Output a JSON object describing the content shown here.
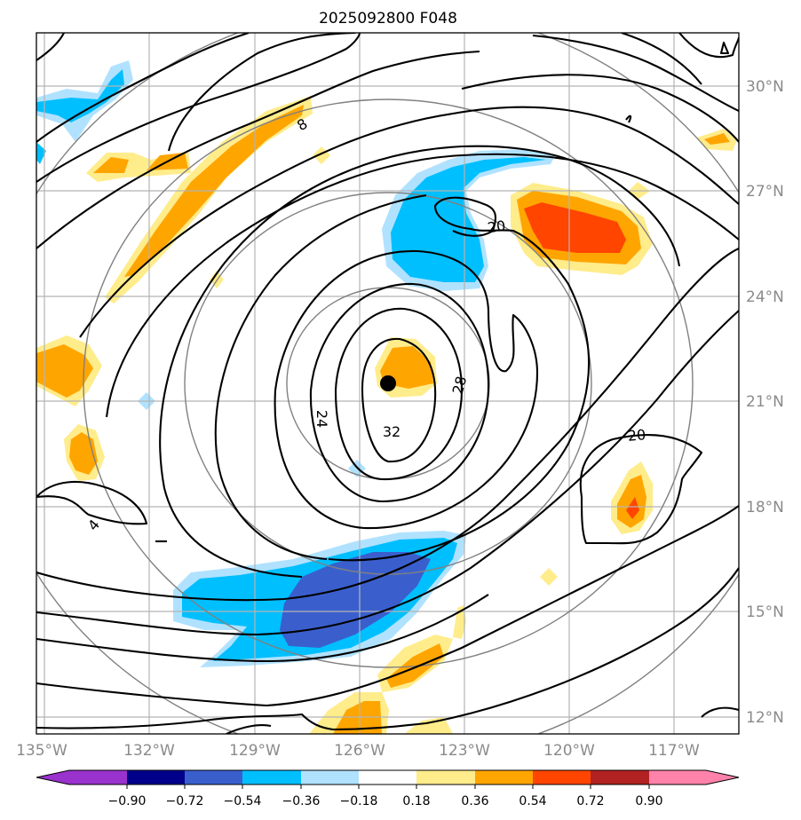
{
  "chart_data": {
    "type": "map",
    "title": "2025092800 F048",
    "lon_ticks": [
      "135°W",
      "132°W",
      "129°W",
      "126°W",
      "123°W",
      "120°W",
      "117°W"
    ],
    "lat_ticks": [
      "30°N",
      "27°N",
      "24°N",
      "21°N",
      "18°N",
      "15°N",
      "12°N"
    ],
    "lon_range": [
      -135,
      -115
    ],
    "lat_range": [
      11.5,
      31.5
    ],
    "grid": true,
    "storm_center": {
      "lon": -125.1,
      "lat": 21.5
    },
    "range_rings": 4,
    "contour_labels": [
      {
        "text": "8",
        "lon": -127.5,
        "lat": 29.4
      },
      {
        "text": "4",
        "lon": -133.2,
        "lat": 17.0
      },
      {
        "text": "24",
        "lon": -126.1,
        "lat": 20.5
      },
      {
        "text": "32",
        "lon": -125.0,
        "lat": 20.0
      },
      {
        "text": "28",
        "lon": -124.0,
        "lat": 21.5
      },
      {
        "text": "20",
        "lon": -121.0,
        "lat": 25.9
      },
      {
        "text": "20",
        "lon": -117.5,
        "lat": 19.5
      }
    ],
    "colorbar": {
      "ticks": [
        "−0.90",
        "−0.72",
        "−0.54",
        "−0.36",
        "−0.18",
        "0.18",
        "0.36",
        "0.54",
        "0.72",
        "0.90"
      ],
      "colors": [
        "#9a32cd",
        "#00008b",
        "#3a5fcd",
        "#00bfff",
        "#b0e2ff",
        "#ffffff",
        "#ffec8b",
        "#ffa500",
        "#ff4500",
        "#b22222",
        "#ff82ab"
      ],
      "extend": "both"
    }
  }
}
